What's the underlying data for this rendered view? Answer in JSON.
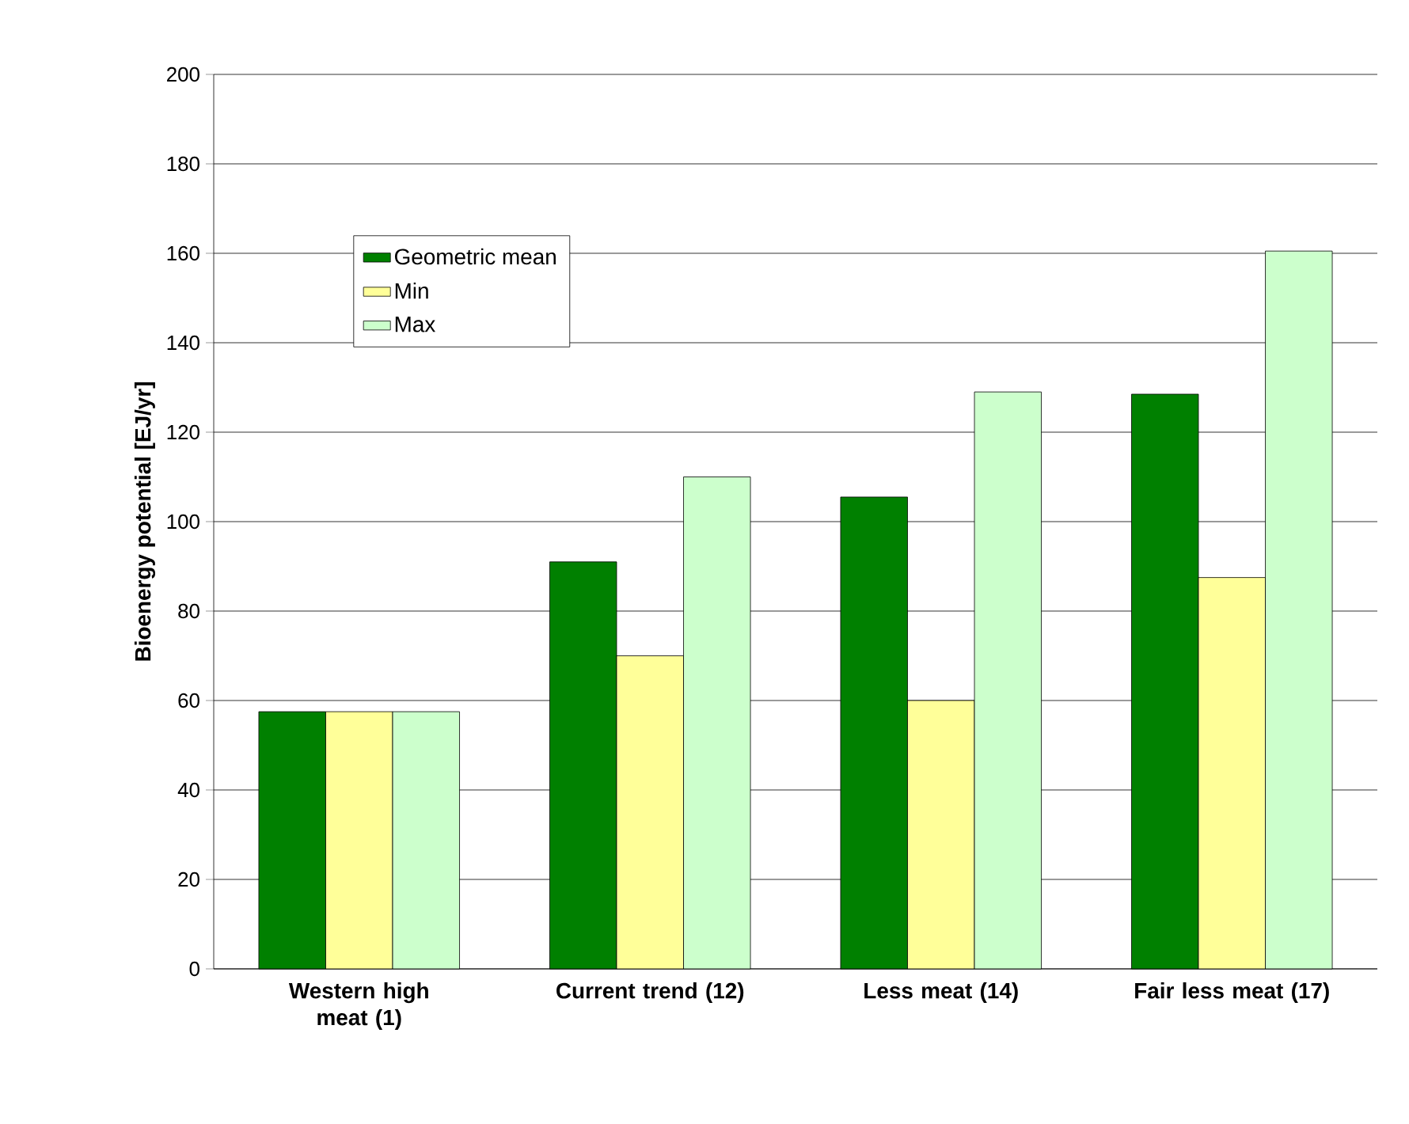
{
  "chart_data": {
    "type": "bar",
    "ylabel": "Bioenergy potential [EJ/yr]",
    "categories": [
      "Western high meat (1)",
      "Current trend (12)",
      "Less meat (14)",
      "Fair less meat (17)"
    ],
    "series": [
      {
        "name": "Geometric mean",
        "color": "#008000",
        "values": [
          57.5,
          91,
          105.5,
          128.5
        ]
      },
      {
        "name": "Min",
        "color": "#ffff99",
        "values": [
          57.5,
          70,
          60,
          87.5
        ]
      },
      {
        "name": "Max",
        "color": "#ccffcc",
        "values": [
          57.5,
          110,
          129,
          160.5
        ]
      }
    ],
    "ylim": [
      0,
      200
    ],
    "yticks": [
      0,
      20,
      40,
      60,
      80,
      100,
      120,
      140,
      160,
      180,
      200
    ],
    "grid": "y",
    "legend": "top left"
  }
}
